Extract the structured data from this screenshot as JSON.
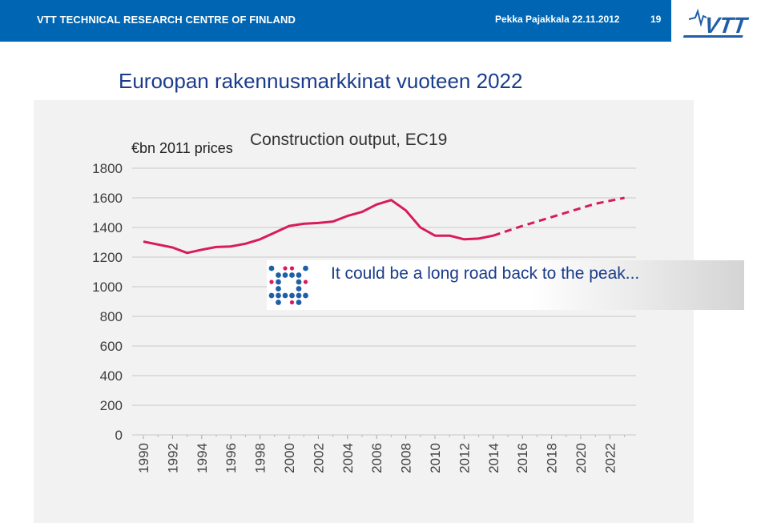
{
  "header": {
    "org": "VTT TECHNICAL RESEARCH CENTRE OF FINLAND",
    "author_date": "Pekka Pajakkala  22.11.2012",
    "page_number": "19",
    "logo_text": "VTT"
  },
  "slide": {
    "title": "Euroopan rakennusmarkkinat vuoteen 2022"
  },
  "callout": {
    "text": "It could be a long road back to the peak..."
  },
  "colors": {
    "header_bg": "#0066b3",
    "title": "#1b3c8c",
    "line": "#d81b5a",
    "dot_blue": "#1f5fa8",
    "dot_pink": "#d81b5a"
  },
  "chart_data": {
    "type": "line",
    "title": "Construction output, EC19",
    "ylabel": "€bn 2011 prices",
    "xlabel": "",
    "ylim": [
      0,
      1800
    ],
    "yticks": [
      0,
      200,
      400,
      600,
      800,
      1000,
      1200,
      1400,
      1600,
      1800
    ],
    "xticks": [
      "1990",
      "1992",
      "1994",
      "1996",
      "1998",
      "2000",
      "2002",
      "2004",
      "2006",
      "2008",
      "2010",
      "2012",
      "2014",
      "2016",
      "2018",
      "2020",
      "2022"
    ],
    "grid": true,
    "series": [
      {
        "style": "solid",
        "x": [
          1990,
          1991,
          1992,
          1993,
          1994,
          1995,
          1996,
          1997,
          1998,
          1999,
          2000,
          2001,
          2002,
          2003,
          2004,
          2005,
          2006,
          2007,
          2008,
          2009,
          2010,
          2011,
          2012,
          2013,
          2014
        ],
        "values": [
          1305,
          1285,
          1265,
          1228,
          1250,
          1268,
          1272,
          1290,
          1320,
          1365,
          1410,
          1425,
          1430,
          1440,
          1478,
          1505,
          1555,
          1585,
          1515,
          1400,
          1345,
          1345,
          1320,
          1325,
          1345
        ]
      },
      {
        "style": "dashed",
        "x": [
          2014,
          2015,
          2016,
          2017,
          2018,
          2019,
          2020,
          2021,
          2022,
          2023
        ],
        "values": [
          1345,
          1378,
          1410,
          1440,
          1470,
          1500,
          1530,
          1560,
          1580,
          1600
        ]
      }
    ]
  }
}
